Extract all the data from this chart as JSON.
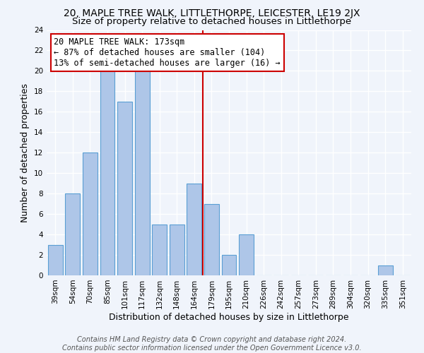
{
  "title": "20, MAPLE TREE WALK, LITTLETHORPE, LEICESTER, LE19 2JX",
  "subtitle": "Size of property relative to detached houses in Littlethorpe",
  "xlabel": "Distribution of detached houses by size in Littlethorpe",
  "ylabel": "Number of detached properties",
  "bar_labels": [
    "39sqm",
    "54sqm",
    "70sqm",
    "85sqm",
    "101sqm",
    "117sqm",
    "132sqm",
    "148sqm",
    "164sqm",
    "179sqm",
    "195sqm",
    "210sqm",
    "226sqm",
    "242sqm",
    "257sqm",
    "273sqm",
    "289sqm",
    "304sqm",
    "320sqm",
    "335sqm",
    "351sqm"
  ],
  "bar_values": [
    3,
    8,
    12,
    20,
    17,
    20,
    5,
    5,
    9,
    7,
    2,
    4,
    0,
    0,
    0,
    0,
    0,
    0,
    0,
    1,
    0
  ],
  "bar_color": "#aec6e8",
  "bar_edge_color": "#5a9fd4",
  "reference_line_label": "20 MAPLE TREE WALK: 173sqm",
  "annotation_line1": "← 87% of detached houses are smaller (104)",
  "annotation_line2": "13% of semi-detached houses are larger (16) →",
  "annotation_box_color": "#ffffff",
  "annotation_box_edge_color": "#cc0000",
  "reference_line_color": "#cc0000",
  "ylim": [
    0,
    24
  ],
  "yticks": [
    0,
    2,
    4,
    6,
    8,
    10,
    12,
    14,
    16,
    18,
    20,
    22,
    24
  ],
  "footer_line1": "Contains HM Land Registry data © Crown copyright and database right 2024.",
  "footer_line2": "Contains public sector information licensed under the Open Government Licence v3.0.",
  "background_color": "#f0f4fb",
  "grid_color": "#ffffff",
  "title_fontsize": 10,
  "subtitle_fontsize": 9.5,
  "axis_label_fontsize": 9,
  "tick_fontsize": 7.5,
  "footer_fontsize": 7,
  "annotation_fontsize": 8.5
}
